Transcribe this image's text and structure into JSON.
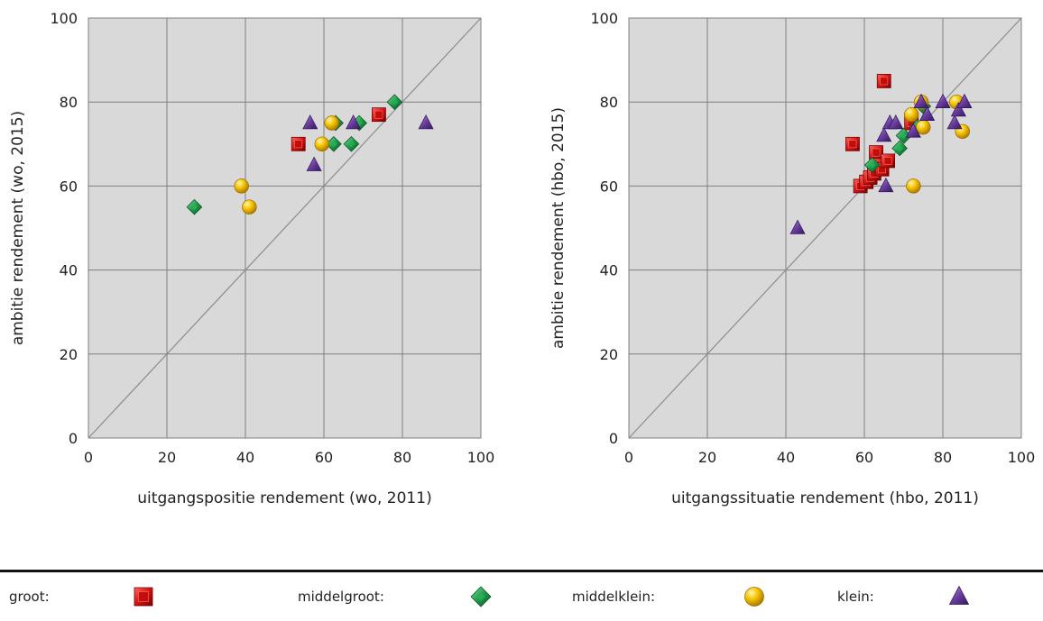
{
  "chart_data": [
    {
      "type": "scatter",
      "xlabel": "uitgangspositie rendement (wo, 2011)",
      "ylabel": "ambitie rendement (wo, 2015)",
      "xlim": [
        0,
        100
      ],
      "ylim": [
        0,
        100
      ],
      "xticks": [
        "0",
        "20",
        "40",
        "60",
        "80",
        "100"
      ],
      "yticks": [
        "0",
        "20",
        "40",
        "60",
        "80",
        "100"
      ],
      "grid": true,
      "diagonal": true,
      "series": [
        {
          "name": "groot",
          "points": [
            [
              53.5,
              70
            ],
            [
              74,
              77
            ]
          ]
        },
        {
          "name": "middelgroot",
          "points": [
            [
              27,
              55
            ],
            [
              62.5,
              70
            ],
            [
              63,
              75
            ],
            [
              67,
              70
            ],
            [
              69,
              75
            ],
            [
              78,
              80
            ]
          ]
        },
        {
          "name": "middelklein",
          "points": [
            [
              39,
              60
            ],
            [
              41,
              55
            ],
            [
              59.5,
              70
            ],
            [
              62,
              75
            ]
          ]
        },
        {
          "name": "klein",
          "points": [
            [
              56.5,
              75
            ],
            [
              57.5,
              65
            ],
            [
              67.5,
              75
            ],
            [
              86,
              75
            ]
          ]
        }
      ]
    },
    {
      "type": "scatter",
      "xlabel": "uitgangssituatie rendement (hbo, 2011)",
      "ylabel": "ambitie rendement (hbo, 2015)",
      "xlim": [
        0,
        100
      ],
      "ylim": [
        0,
        100
      ],
      "xticks": [
        "0",
        "20",
        "40",
        "60",
        "80",
        "100"
      ],
      "yticks": [
        "0",
        "20",
        "40",
        "60",
        "80",
        "100"
      ],
      "grid": true,
      "diagonal": true,
      "series": [
        {
          "name": "groot",
          "points": [
            [
              57,
              70
            ],
            [
              59,
              60
            ],
            [
              60.5,
              61
            ],
            [
              61.5,
              62
            ],
            [
              62.5,
              63
            ],
            [
              63,
              68
            ],
            [
              63.5,
              65
            ],
            [
              64.5,
              64
            ],
            [
              65,
              85
            ],
            [
              66,
              66
            ],
            [
              72,
              75
            ]
          ]
        },
        {
          "name": "middelgroot",
          "points": [
            [
              62,
              65
            ],
            [
              69,
              69
            ],
            [
              70,
              72
            ],
            [
              73.5,
              74
            ],
            [
              75,
              79
            ]
          ]
        },
        {
          "name": "middelklein",
          "points": [
            [
              72,
              77
            ],
            [
              72.5,
              60
            ],
            [
              74.5,
              80
            ],
            [
              75,
              74
            ],
            [
              83.5,
              80
            ],
            [
              85,
              73
            ]
          ]
        },
        {
          "name": "klein",
          "points": [
            [
              43,
              50
            ],
            [
              65,
              72
            ],
            [
              65.5,
              60
            ],
            [
              66.5,
              75
            ],
            [
              68,
              75
            ],
            [
              72.5,
              73
            ],
            [
              74.5,
              80
            ],
            [
              76,
              77
            ],
            [
              80,
              80
            ],
            [
              83,
              75
            ],
            [
              84,
              78
            ],
            [
              85.5,
              80
            ]
          ]
        }
      ]
    }
  ],
  "legend": [
    {
      "label": "groot:",
      "marker": "square",
      "color": "#cc1111"
    },
    {
      "label": "middelgroot:",
      "marker": "diamond",
      "color": "#1e9a4a"
    },
    {
      "label": "middelklein:",
      "marker": "circle",
      "color": "#f2bd00"
    },
    {
      "label": "klein:",
      "marker": "triangle",
      "color": "#6a3d9e"
    }
  ]
}
